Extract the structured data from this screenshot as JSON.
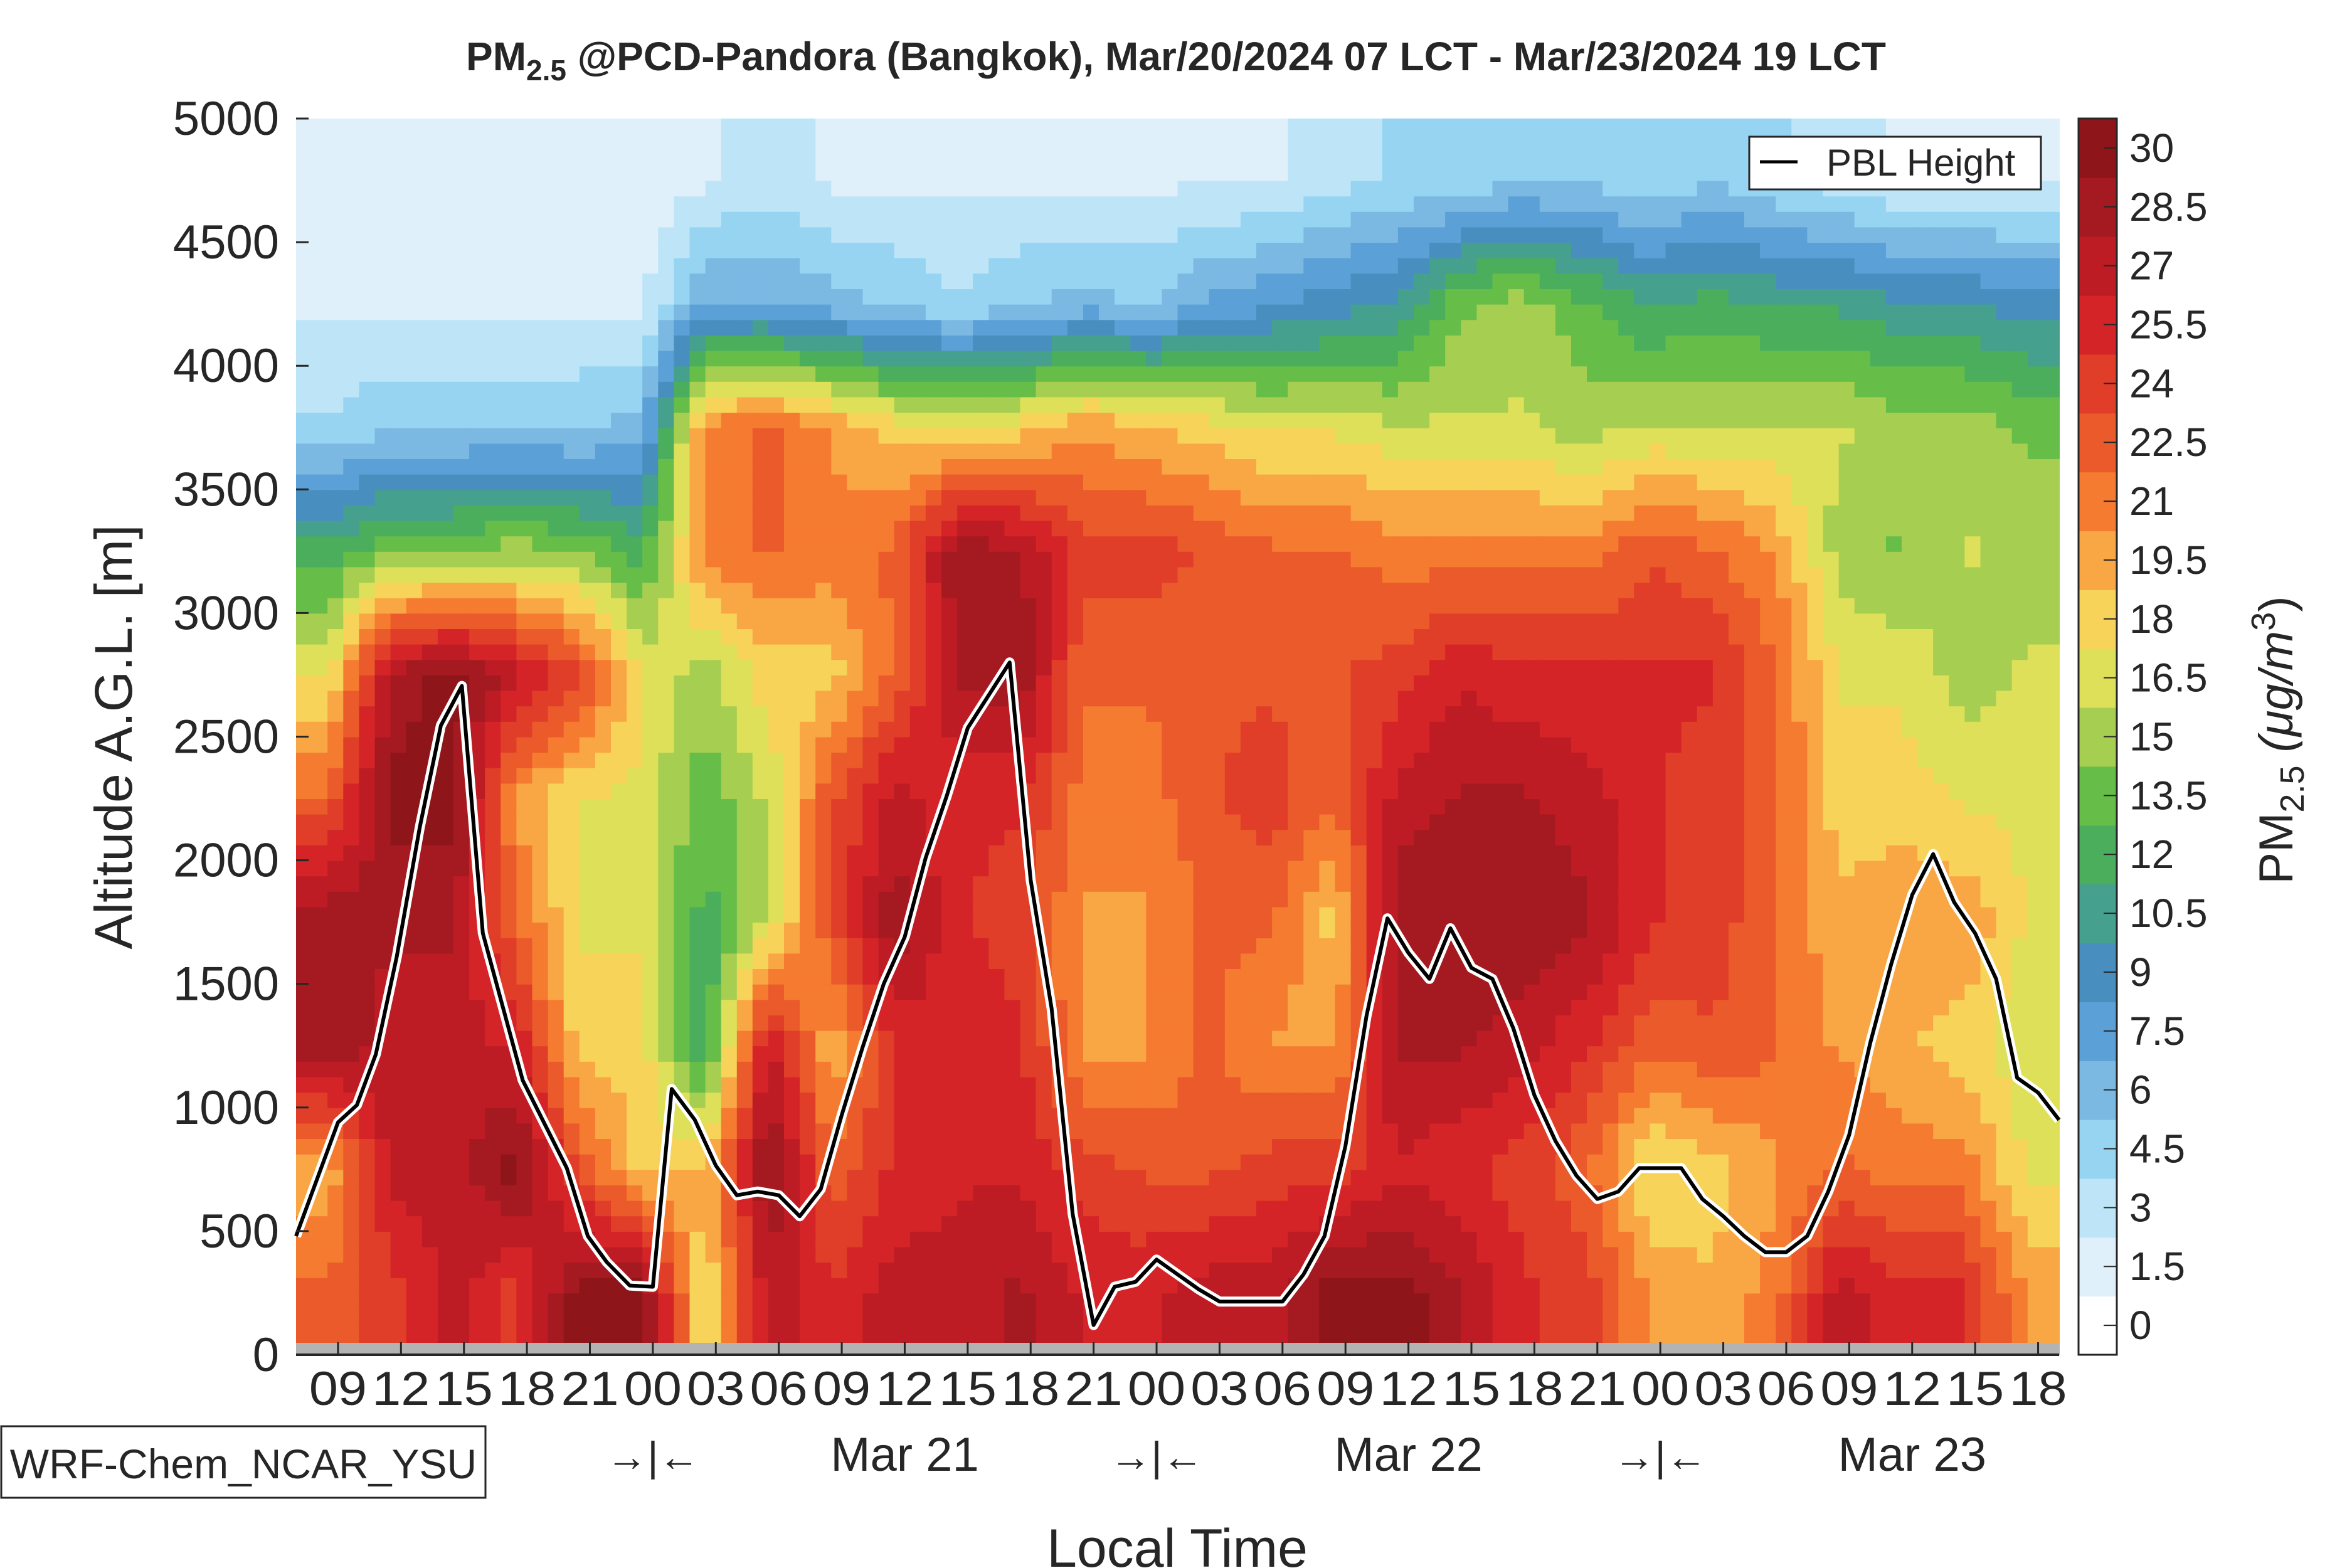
{
  "chart_data": {
    "type": "heatmap",
    "title_prefix": "PM",
    "title_sub": "2.5",
    "title_rest": " @PCD-Pandora (Bangkok), Mar/20/2024 07 LCT - Mar/23/2024 19 LCT",
    "xlabel": "Local Time",
    "ylabel": "Altitude A.G.L. [m]",
    "model_label": "WRF-Chem_NCAR_YSU",
    "xlim_hours": [
      0,
      84
    ],
    "ylim": [
      0,
      5000
    ],
    "y_ticks": [
      0,
      500,
      1000,
      1500,
      2000,
      2500,
      3000,
      3500,
      4000,
      4500,
      5000
    ],
    "x_tick_labels": [
      "09",
      "12",
      "15",
      "18",
      "21",
      "00",
      "03",
      "06",
      "09",
      "12",
      "15",
      "18",
      "21",
      "00",
      "03",
      "06",
      "09",
      "12",
      "15",
      "18",
      "21",
      "00",
      "03",
      "06",
      "09",
      "12",
      "15",
      "18"
    ],
    "day_separator": "→|←",
    "day_labels": [
      "Mar 21",
      "Mar 22",
      "Mar 23"
    ],
    "colorbar": {
      "label_prefix": "PM",
      "label_sub": "2.5",
      "label_units": " (μg/m",
      "label_sup": "3",
      "label_close": ")",
      "levels": [
        "0",
        "1.5",
        "3",
        "4.5",
        "6",
        "7.5",
        "9",
        "10.5",
        "12",
        "13.5",
        "15",
        "16.5",
        "18",
        "19.5",
        "21",
        "22.5",
        "24",
        "25.5",
        "27",
        "28.5",
        "30"
      ],
      "colors": [
        "#ffffff",
        "#dff0fa",
        "#bde5f7",
        "#96d4f2",
        "#7bb9e3",
        "#5ba0d6",
        "#488fbf",
        "#45a08e",
        "#4aae5d",
        "#66bd48",
        "#a6cf52",
        "#dfe05a",
        "#f7d35a",
        "#f8a744",
        "#f57b30",
        "#ea5a2a",
        "#e03e28",
        "#d42428",
        "#bd1c24",
        "#a51a20",
        "#8e1519"
      ]
    },
    "legend": {
      "entry": "PBL Height",
      "placement": "top-right"
    },
    "field": {
      "time_hours": [
        1.5,
        4.5,
        7.5,
        10.5,
        13.5,
        16.5,
        19.5,
        22.5,
        25.5,
        28.5,
        31.5,
        34.5,
        37.5,
        40.5,
        43.5,
        46.5,
        49.5,
        52.5,
        55.5,
        58.5,
        61.5,
        64.5,
        67.5,
        70.5,
        73.5,
        76.5,
        79.5,
        82.5
      ],
      "altitude_m": [
        250,
        750,
        1250,
        1750,
        2250,
        2750,
        3250,
        3750,
        4250,
        4750
      ],
      "pm25": [
        [
          22,
          19,
          29,
          29,
          22,
          17,
          12,
          4,
          2,
          2
        ],
        [
          24,
          27,
          27,
          28,
          30,
          28,
          14,
          5,
          2,
          2
        ],
        [
          27,
          27,
          27,
          28,
          30,
          30,
          14,
          5,
          2,
          2
        ],
        [
          24,
          30,
          26,
          22,
          20,
          27,
          15,
          5,
          2,
          2
        ],
        [
          30,
          23,
          18,
          17,
          17,
          24,
          14,
          5,
          2,
          1
        ],
        [
          30,
          18,
          18,
          17,
          17,
          17,
          12,
          6,
          2,
          1
        ],
        [
          17,
          19,
          11,
          12,
          13,
          15,
          21,
          21,
          7,
          2
        ],
        [
          27,
          30,
          27,
          16,
          16,
          18,
          22,
          22,
          7,
          3
        ],
        [
          25,
          22,
          19,
          23,
          23,
          18,
          21,
          20,
          6,
          2
        ],
        [
          27,
          25,
          25,
          29,
          27,
          22,
          22,
          18,
          5,
          2
        ],
        [
          27,
          26,
          26,
          25,
          25,
          28,
          29,
          17,
          4,
          2
        ],
        [
          28,
          26,
          25,
          24,
          25,
          29,
          28,
          18,
          5,
          2
        ],
        [
          26,
          24,
          20,
          20,
          21,
          22,
          24,
          20,
          6,
          2
        ],
        [
          26,
          23,
          20,
          20,
          21,
          22,
          24,
          19,
          5,
          2
        ],
        [
          27,
          23,
          22,
          22,
          23,
          23,
          23,
          18,
          7,
          2
        ],
        [
          27,
          24,
          20,
          22,
          24,
          23,
          22,
          17,
          8,
          2
        ],
        [
          30,
          24,
          20,
          18,
          22,
          23,
          22,
          17,
          9,
          3
        ],
        [
          30,
          26,
          28,
          29,
          27,
          24,
          21,
          16,
          10,
          4
        ],
        [
          28,
          25,
          28,
          29,
          28,
          26,
          21,
          16,
          14,
          4
        ],
        [
          25,
          24,
          27,
          29,
          28,
          25,
          21,
          16,
          15,
          5
        ],
        [
          24,
          22,
          25,
          28,
          27,
          25,
          21,
          15,
          13,
          5
        ],
        [
          20,
          17,
          22,
          25,
          25,
          25,
          23,
          16,
          11,
          4
        ],
        [
          19,
          18,
          23,
          24,
          24,
          25,
          22,
          16,
          12,
          5
        ],
        [
          21,
          20,
          22,
          22,
          22,
          22,
          20,
          16,
          11,
          4
        ],
        [
          27,
          22,
          20,
          19,
          18,
          17,
          15,
          16,
          11,
          3
        ],
        [
          25,
          21,
          19,
          20,
          18,
          17,
          14,
          15,
          10,
          2
        ],
        [
          25,
          21,
          18,
          20,
          17,
          15,
          16,
          15,
          10,
          2
        ],
        [
          20,
          17,
          16,
          17,
          17,
          16,
          15,
          14,
          9,
          2
        ]
      ]
    },
    "pbl_height": {
      "hours": [
        0,
        2,
        2.9,
        3.8,
        4.8,
        5.9,
        6.9,
        7.9,
        8.9,
        10.8,
        12.9,
        13.9,
        14.8,
        15.9,
        17,
        17.9,
        19,
        20,
        21,
        22,
        23,
        24,
        25,
        26,
        27,
        28,
        29,
        30,
        31,
        32,
        34,
        35,
        36,
        37,
        38,
        39,
        40,
        41,
        42,
        43,
        44,
        45,
        47,
        48,
        49,
        50,
        51,
        52,
        53,
        54,
        55,
        56,
        57,
        58,
        59,
        60,
        61,
        62,
        63,
        64,
        66,
        67,
        68,
        69,
        70,
        71,
        72,
        73,
        74,
        75,
        76,
        77,
        78,
        79,
        80,
        81,
        82,
        83,
        84
      ],
      "meters": [
        480,
        940,
        1010,
        1215,
        1610,
        2135,
        2545,
        2705,
        1705,
        1110,
        755,
        480,
        375,
        280,
        275,
        1075,
        950,
        765,
        645,
        660,
        645,
        560,
        670,
        970,
        1245,
        1500,
        1690,
        2010,
        2260,
        2535,
        2800,
        1920,
        1400,
        570,
        120,
        275,
        295,
        385,
        325,
        265,
        215,
        215,
        215,
        325,
        480,
        845,
        1370,
        1765,
        1625,
        1520,
        1725,
        1565,
        1520,
        1320,
        1050,
        865,
        725,
        630,
        660,
        755,
        755,
        630,
        560,
        480,
        415,
        415,
        480,
        660,
        890,
        1260,
        1580,
        1860,
        2025,
        1830,
        1705,
        1520,
        1120,
        1060,
        950
      ]
    }
  }
}
